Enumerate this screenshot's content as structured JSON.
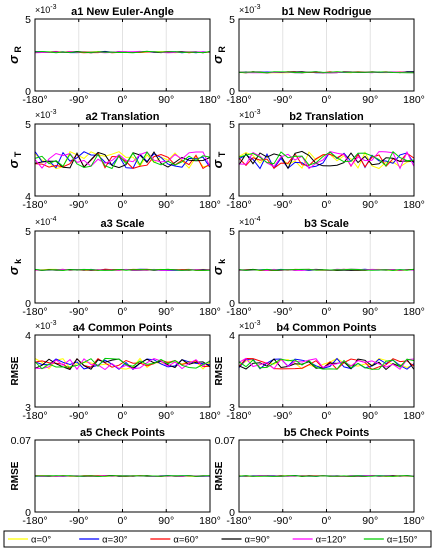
{
  "x_tick_labels": [
    "-180°",
    "-90°",
    "0°",
    "90°",
    "180°"
  ],
  "legend": [
    {
      "label": "α=0°",
      "color": "#ffff00"
    },
    {
      "label": "α=30°",
      "color": "#0000ff"
    },
    {
      "label": "α=60°",
      "color": "#ff0000"
    },
    {
      "label": "α=90°",
      "color": "#000000"
    },
    {
      "label": "α=120°",
      "color": "#ff00ff"
    },
    {
      "label": "α=150°",
      "color": "#00cc00"
    }
  ],
  "chart_data": [
    {
      "id": "a1",
      "type": "line",
      "title": "a1 New Euler-Angle",
      "ylabel_main": "σ",
      "ylabel_sub": "R",
      "exponent": "×10",
      "exponent_power": "-3",
      "xlim": [
        -180,
        180
      ],
      "ylim": [
        0,
        5
      ],
      "yticks": [
        0,
        5
      ],
      "ytick_labels": [
        "0",
        "5"
      ],
      "level": 2.7,
      "noise": 0.05,
      "grid": "vertical"
    },
    {
      "id": "b1",
      "type": "line",
      "title": "b1 New Rodrigue",
      "ylabel_main": "σ",
      "ylabel_sub": "R",
      "exponent": "×10",
      "exponent_power": "-3",
      "xlim": [
        -180,
        180
      ],
      "ylim": [
        0,
        5
      ],
      "yticks": [
        0,
        5
      ],
      "ytick_labels": [
        "0",
        "5"
      ],
      "level": 1.3,
      "noise": 0.04,
      "grid": "vertical"
    },
    {
      "id": "a2",
      "type": "line",
      "title": "a2 Translation",
      "ylabel_main": "σ",
      "ylabel_sub": "T",
      "exponent": "×10",
      "exponent_power": "-3",
      "xlim": [
        -180,
        180
      ],
      "ylim": [
        4,
        5
      ],
      "yticks": [
        4,
        5
      ],
      "ytick_labels": [
        "4",
        "5"
      ],
      "level": 4.5,
      "noise": 0.12,
      "grid": "vertical"
    },
    {
      "id": "b2",
      "type": "line",
      "title": "b2 Translation",
      "ylabel_main": "σ",
      "ylabel_sub": "T",
      "exponent": "×10",
      "exponent_power": "-3",
      "xlim": [
        -180,
        180
      ],
      "ylim": [
        4,
        5
      ],
      "yticks": [
        4,
        5
      ],
      "ytick_labels": [
        "4",
        "5"
      ],
      "level": 4.5,
      "noise": 0.12,
      "grid": "vertical"
    },
    {
      "id": "a3",
      "type": "line",
      "title": "a3 Scale",
      "ylabel_main": "σ",
      "ylabel_sub": "k",
      "exponent": "×10",
      "exponent_power": "-4",
      "xlim": [
        -180,
        180
      ],
      "ylim": [
        0,
        5
      ],
      "yticks": [
        0,
        5
      ],
      "ytick_labels": [
        "0",
        "5"
      ],
      "level": 2.3,
      "noise": 0.04,
      "grid": "vertical"
    },
    {
      "id": "b3",
      "type": "line",
      "title": "b3 Scale",
      "ylabel_main": "σ",
      "ylabel_sub": "k",
      "exponent": "×10",
      "exponent_power": "-4",
      "xlim": [
        -180,
        180
      ],
      "ylim": [
        0,
        5
      ],
      "yticks": [
        0,
        5
      ],
      "ytick_labels": [
        "0",
        "5"
      ],
      "level": 2.3,
      "noise": 0.04,
      "grid": "vertical"
    },
    {
      "id": "a4",
      "type": "line",
      "title": "a4 Common Points",
      "ylabel_main": "RMSE",
      "ylabel_sub": "",
      "exponent": "×10",
      "exponent_power": "-3",
      "xlim": [
        -180,
        180
      ],
      "ylim": [
        3,
        4
      ],
      "yticks": [
        3,
        4
      ],
      "ytick_labels": [
        "3",
        "4"
      ],
      "level": 3.6,
      "noise": 0.08,
      "grid": "vertical"
    },
    {
      "id": "b4",
      "type": "line",
      "title": "b4 Common  Points",
      "ylabel_main": "RMSE",
      "ylabel_sub": "",
      "exponent": "×10",
      "exponent_power": "-3",
      "xlim": [
        -180,
        180
      ],
      "ylim": [
        3,
        4
      ],
      "yticks": [
        3,
        4
      ],
      "ytick_labels": [
        "3",
        "4"
      ],
      "level": 3.6,
      "noise": 0.08,
      "grid": "vertical"
    },
    {
      "id": "a5",
      "type": "line",
      "title": "a5 Check Points",
      "ylabel_main": "RMSE",
      "ylabel_sub": "",
      "exponent": "",
      "exponent_power": "",
      "xlim": [
        -180,
        180
      ],
      "ylim": [
        0,
        0.07
      ],
      "yticks": [
        0,
        0.07
      ],
      "ytick_labels": [
        "0",
        "0.07"
      ],
      "level": 0.035,
      "noise": 0.0004,
      "grid": "vertical"
    },
    {
      "id": "b5",
      "type": "line",
      "title": "b5 Check Points",
      "ylabel_main": "RMSE",
      "ylabel_sub": "",
      "exponent": "",
      "exponent_power": "",
      "xlim": [
        -180,
        180
      ],
      "ylim": [
        0,
        0.07
      ],
      "yticks": [
        0,
        0.07
      ],
      "ytick_labels": [
        "0",
        "0.07"
      ],
      "level": 0.035,
      "noise": 0.0004,
      "grid": "vertical"
    }
  ]
}
